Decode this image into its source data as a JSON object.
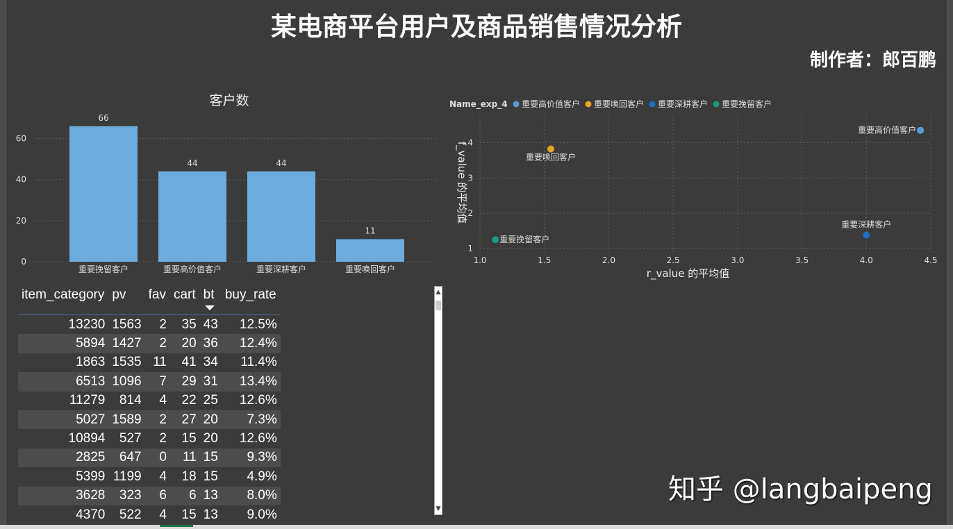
{
  "title": "某电商平台用户及商品销售情况分析",
  "author": "制作者：郎百鹏",
  "watermark": "知乎 @langbaipeng",
  "colors": {
    "background": "#3b3b3b",
    "bar": "#6baddf",
    "high_value": "#5b9bd5",
    "winback": "#e6a421",
    "deep": "#1e6fc0",
    "retain": "#1a9a84"
  },
  "chart_data": [
    {
      "type": "bar",
      "title": "客户数",
      "categories": [
        "重要挽留客户",
        "重要高价值客户",
        "重要深耕客户",
        "重要唤回客户"
      ],
      "values": [
        66,
        44,
        44,
        11
      ],
      "ylim": [
        0,
        70
      ],
      "yticks": [
        0,
        20,
        40,
        60
      ],
      "grid": true
    },
    {
      "type": "scatter",
      "legend_title": "Name_exp_4",
      "xlabel": "r_value 的平均值",
      "ylabel": "f_value 的平均值",
      "xlim": [
        1.0,
        4.5
      ],
      "ylim": [
        0.9,
        4.6
      ],
      "xticks": [
        "1.0",
        "1.5",
        "2.0",
        "2.5",
        "3.0",
        "3.5",
        "4.0",
        "4.5"
      ],
      "yticks": [
        "1",
        "2",
        "3",
        "4"
      ],
      "grid": true,
      "legend_position": "top-left",
      "series": [
        {
          "name": "重要高价值客户",
          "x": [
            4.42
          ],
          "y": [
            4.35
          ],
          "color": "#5b9bd5"
        },
        {
          "name": "重要唤回客户",
          "x": [
            1.55
          ],
          "y": [
            3.82
          ],
          "color": "#e6a421"
        },
        {
          "name": "重要深耕客户",
          "x": [
            4.0
          ],
          "y": [
            1.38
          ],
          "color": "#1e6fc0"
        },
        {
          "name": "重要挽留客户",
          "x": [
            1.12
          ],
          "y": [
            1.25
          ],
          "color": "#1a9a84"
        }
      ]
    }
  ],
  "table": {
    "headers": [
      "item_category",
      "pv",
      "fav",
      "cart",
      "bt",
      "buy_rate"
    ],
    "rows": [
      [
        "13230",
        "1563",
        "2",
        "35",
        "43",
        "12.5%"
      ],
      [
        "5894",
        "1427",
        "2",
        "20",
        "36",
        "12.4%"
      ],
      [
        "1863",
        "1535",
        "11",
        "41",
        "34",
        "11.4%"
      ],
      [
        "6513",
        "1096",
        "7",
        "29",
        "31",
        "13.4%"
      ],
      [
        "11279",
        "814",
        "4",
        "22",
        "25",
        "12.6%"
      ],
      [
        "5027",
        "1589",
        "2",
        "27",
        "20",
        "7.3%"
      ],
      [
        "10894",
        "527",
        "2",
        "15",
        "20",
        "12.6%"
      ],
      [
        "2825",
        "647",
        "0",
        "11",
        "15",
        "9.3%"
      ],
      [
        "5399",
        "1199",
        "4",
        "18",
        "15",
        "4.9%"
      ],
      [
        "3628",
        "323",
        "6",
        "6",
        "13",
        "8.0%"
      ],
      [
        "4370",
        "522",
        "4",
        "15",
        "13",
        "9.0%"
      ]
    ]
  }
}
